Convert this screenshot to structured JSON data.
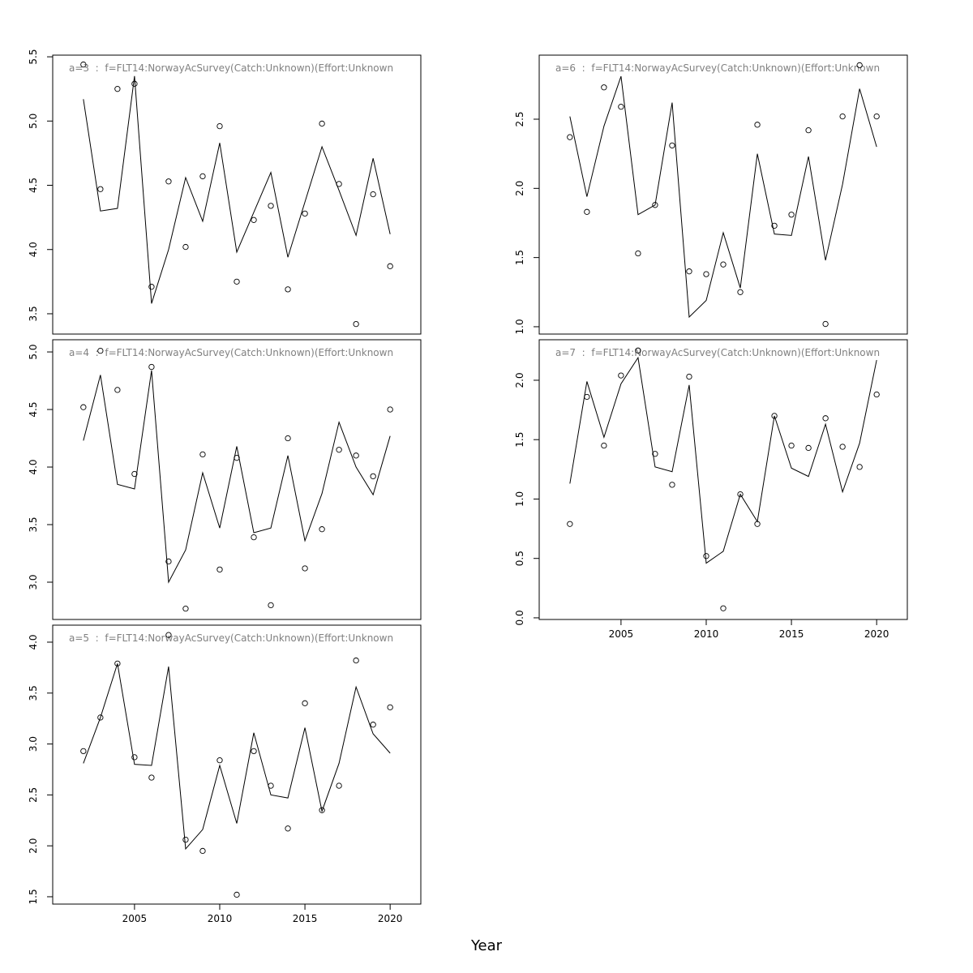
{
  "xlabel": "Year",
  "chart_data": [
    {
      "type": "line",
      "title": "a=3  :  f=FLT14:NorwayAcSurvey(Catch:Unknown)(Effort:Unknown",
      "x": [
        2002,
        2003,
        2004,
        2005,
        2006,
        2007,
        2008,
        2009,
        2010,
        2011,
        2012,
        2013,
        2014,
        2015,
        2016,
        2017,
        2018,
        2019,
        2020
      ],
      "xlim": [
        2000.2,
        2021.8
      ],
      "ylim": [
        3.342,
        5.513
      ],
      "yticks": [
        3.5,
        {
          "value": 4,
          "label": "4.0"
        },
        4.5,
        {
          "value": 5,
          "label": "5.0"
        },
        5.5
      ],
      "series": [
        {
          "marker": "circle",
          "color": "#000000",
          "values": [
            5.44,
            4.47,
            5.25,
            5.29,
            3.71,
            4.53,
            4.02,
            4.57,
            4.96,
            3.75,
            4.23,
            4.34,
            3.69,
            4.28,
            4.98,
            4.51,
            3.42,
            4.43,
            3.87
          ]
        },
        {
          "marker": "none",
          "color": "#000000",
          "values": [
            5.17,
            4.3,
            4.32,
            5.35,
            3.58,
            4.0,
            4.56,
            4.22,
            4.83,
            3.98,
            4.29,
            4.6,
            3.94,
            4.37,
            4.8,
            4.46,
            4.11,
            4.71,
            4.12
          ]
        }
      ]
    },
    {
      "type": "line",
      "title": "a=4  :  f=FLT14:NorwayAcSurvey(Catch:Unknown)(Effort:Unknown",
      "x": [
        2002,
        2003,
        2004,
        2005,
        2006,
        2007,
        2008,
        2009,
        2010,
        2011,
        2012,
        2013,
        2014,
        2015,
        2016,
        2017,
        2018,
        2019,
        2020
      ],
      "xlim": [
        2000.2,
        2021.8
      ],
      "ylim": [
        2.676,
        5.106
      ],
      "yticks": [
        {
          "value": 3,
          "label": "3.0"
        },
        3.5,
        {
          "value": 4,
          "label": "4.0"
        },
        4.5,
        {
          "value": 5,
          "label": "5.0"
        }
      ],
      "series": [
        {
          "marker": "circle",
          "color": "#000000",
          "values": [
            4.52,
            5.01,
            4.67,
            3.94,
            4.87,
            3.18,
            2.77,
            4.11,
            3.11,
            4.08,
            3.39,
            2.8,
            4.25,
            3.12,
            3.46,
            4.15,
            4.1,
            3.92,
            4.5
          ]
        },
        {
          "marker": "none",
          "color": "#000000",
          "values": [
            4.23,
            4.8,
            3.85,
            3.81,
            4.84,
            3.0,
            3.28,
            3.95,
            3.47,
            4.18,
            3.43,
            3.47,
            4.1,
            3.36,
            3.77,
            4.39,
            4.0,
            3.76,
            4.27
          ]
        }
      ]
    },
    {
      "type": "line",
      "title": "a=5  :  f=FLT14:NorwayAcSurvey(Catch:Unknown)(Effort:Unknown",
      "x": [
        2002,
        2003,
        2004,
        2005,
        2006,
        2007,
        2008,
        2009,
        2010,
        2011,
        2012,
        2013,
        2014,
        2015,
        2016,
        2017,
        2018,
        2019,
        2020
      ],
      "xlim": [
        2000.2,
        2021.8
      ],
      "ylim": [
        1.428,
        4.167
      ],
      "xticks": [
        2005,
        2010,
        2015,
        2020
      ],
      "yticks": [
        1.5,
        {
          "value": 2,
          "label": "2.0"
        },
        2.5,
        {
          "value": 3,
          "label": "3.0"
        },
        3.5,
        {
          "value": 4,
          "label": "4.0"
        }
      ],
      "series": [
        {
          "marker": "circle",
          "color": "#000000",
          "values": [
            2.93,
            3.26,
            3.79,
            2.87,
            2.67,
            4.07,
            2.06,
            1.95,
            2.84,
            1.52,
            2.93,
            2.59,
            2.17,
            3.4,
            2.35,
            2.59,
            3.82,
            3.19,
            3.36
          ]
        },
        {
          "marker": "none",
          "color": "#000000",
          "values": [
            2.81,
            3.26,
            3.79,
            2.8,
            2.79,
            3.76,
            1.97,
            2.16,
            2.79,
            2.22,
            3.11,
            2.5,
            2.47,
            3.16,
            2.34,
            2.81,
            3.56,
            3.1,
            2.91
          ]
        }
      ]
    },
    {
      "type": "line",
      "title": "a=6  :  f=FLT14:NorwayAcSurvey(Catch:Unknown)(Effort:Unknown",
      "x": [
        2002,
        2003,
        2004,
        2005,
        2006,
        2007,
        2008,
        2009,
        2010,
        2011,
        2012,
        2013,
        2014,
        2015,
        2016,
        2017,
        2018,
        2019,
        2020
      ],
      "xlim": [
        2000.2,
        2021.8
      ],
      "ylim": [
        0.947,
        2.963
      ],
      "yticks": [
        {
          "value": 1,
          "label": "1.0"
        },
        1.5,
        {
          "value": 2,
          "label": "2.0"
        },
        2.5
      ],
      "series": [
        {
          "marker": "circle",
          "color": "#000000",
          "values": [
            2.37,
            1.83,
            2.73,
            2.59,
            1.53,
            1.88,
            2.31,
            1.4,
            1.38,
            1.45,
            1.25,
            2.46,
            1.73,
            1.81,
            2.42,
            1.02,
            2.52,
            2.89,
            2.52
          ]
        },
        {
          "marker": "none",
          "color": "#000000",
          "values": [
            2.52,
            1.94,
            2.45,
            2.81,
            1.81,
            1.88,
            2.62,
            1.07,
            1.19,
            1.68,
            1.28,
            2.25,
            1.67,
            1.66,
            2.23,
            1.48,
            2.03,
            2.72,
            2.3
          ]
        }
      ]
    },
    {
      "type": "line",
      "title": "a=7  :  f=FLT14:NorwayAcSurvey(Catch:Unknown)(Effort:Unknown",
      "x": [
        2002,
        2003,
        2004,
        2005,
        2006,
        2007,
        2008,
        2009,
        2010,
        2011,
        2012,
        2013,
        2014,
        2015,
        2016,
        2017,
        2018,
        2019,
        2020
      ],
      "xlim": [
        2000.2,
        2021.8
      ],
      "ylim": [
        -0.014,
        2.341
      ],
      "xticks": [
        2005,
        2010,
        2015,
        2020
      ],
      "yticks": [
        {
          "value": 0,
          "label": "0.0"
        },
        0.5,
        {
          "value": 1,
          "label": "1.0"
        },
        1.5,
        {
          "value": 2,
          "label": "2.0"
        }
      ],
      "series": [
        {
          "marker": "circle",
          "color": "#000000",
          "values": [
            0.79,
            1.86,
            1.45,
            2.04,
            2.25,
            1.38,
            1.12,
            2.03,
            0.52,
            0.08,
            1.04,
            0.79,
            1.7,
            1.45,
            1.43,
            1.68,
            1.44,
            1.27,
            1.88
          ]
        },
        {
          "marker": "none",
          "color": "#000000",
          "values": [
            1.13,
            1.99,
            1.52,
            1.97,
            2.19,
            1.27,
            1.23,
            1.96,
            0.46,
            0.56,
            1.04,
            0.81,
            1.7,
            1.26,
            1.19,
            1.63,
            1.06,
            1.47,
            2.17
          ]
        }
      ]
    }
  ]
}
